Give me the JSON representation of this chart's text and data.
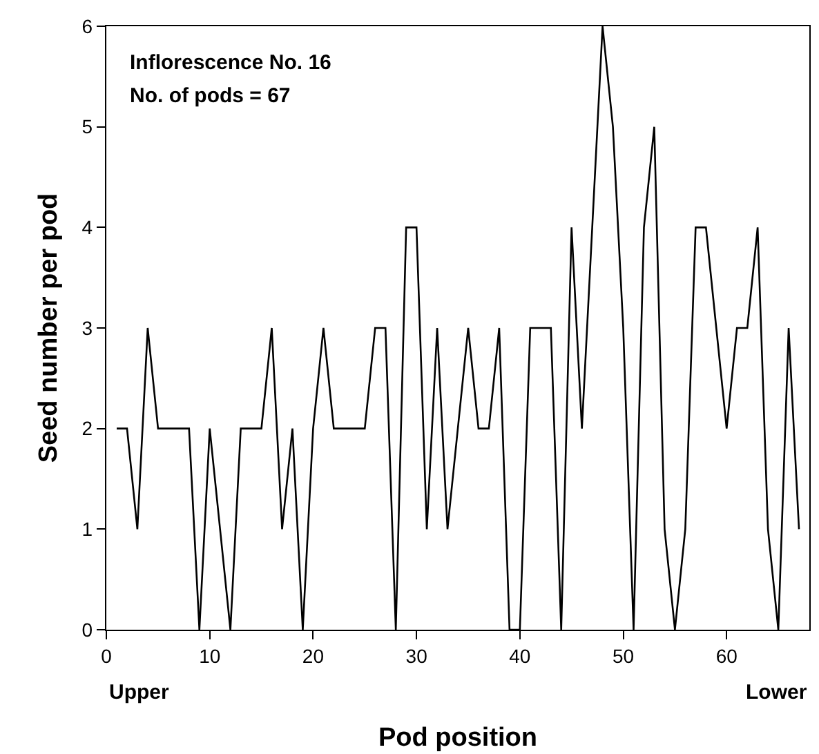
{
  "chart_data": {
    "type": "line",
    "xlabel": "Pod position",
    "ylabel": "Seed number per pod",
    "x": [
      1,
      2,
      3,
      4,
      5,
      6,
      7,
      8,
      9,
      10,
      11,
      12,
      13,
      14,
      15,
      16,
      17,
      18,
      19,
      20,
      21,
      22,
      23,
      24,
      25,
      26,
      27,
      28,
      29,
      30,
      31,
      32,
      33,
      34,
      35,
      36,
      37,
      38,
      39,
      40,
      41,
      42,
      43,
      44,
      45,
      46,
      47,
      48,
      49,
      50,
      51,
      52,
      53,
      54,
      55,
      56,
      57,
      58,
      59,
      60,
      61,
      62,
      63,
      64,
      65,
      66,
      67
    ],
    "series": [
      {
        "color": "#000000",
        "values": [
          2,
          2,
          1,
          3,
          2,
          2,
          2,
          2,
          0,
          2,
          1,
          0,
          2,
          2,
          2,
          3,
          1,
          2,
          0,
          2,
          3,
          2,
          2,
          2,
          2,
          3,
          3,
          0,
          4,
          4,
          1,
          3,
          1,
          2,
          3,
          2,
          2,
          3,
          0,
          0,
          3,
          3,
          3,
          0,
          4,
          2,
          4,
          6,
          5,
          3,
          0,
          4,
          5,
          1,
          0,
          1,
          4,
          4,
          3,
          2,
          3,
          3,
          4,
          1,
          0,
          3,
          1
        ]
      }
    ],
    "xlim": [
      0,
      68
    ],
    "xticks": [
      0,
      10,
      20,
      30,
      40,
      50,
      60
    ],
    "ylim": [
      0,
      6
    ],
    "yticks": [
      0,
      1,
      2,
      3,
      4,
      5,
      6
    ],
    "marker": "none",
    "line_style": "solid",
    "annotations": [
      "Inflorescence No. 16",
      "No. of pods = 67",
      "Upper",
      "Lower"
    ]
  }
}
